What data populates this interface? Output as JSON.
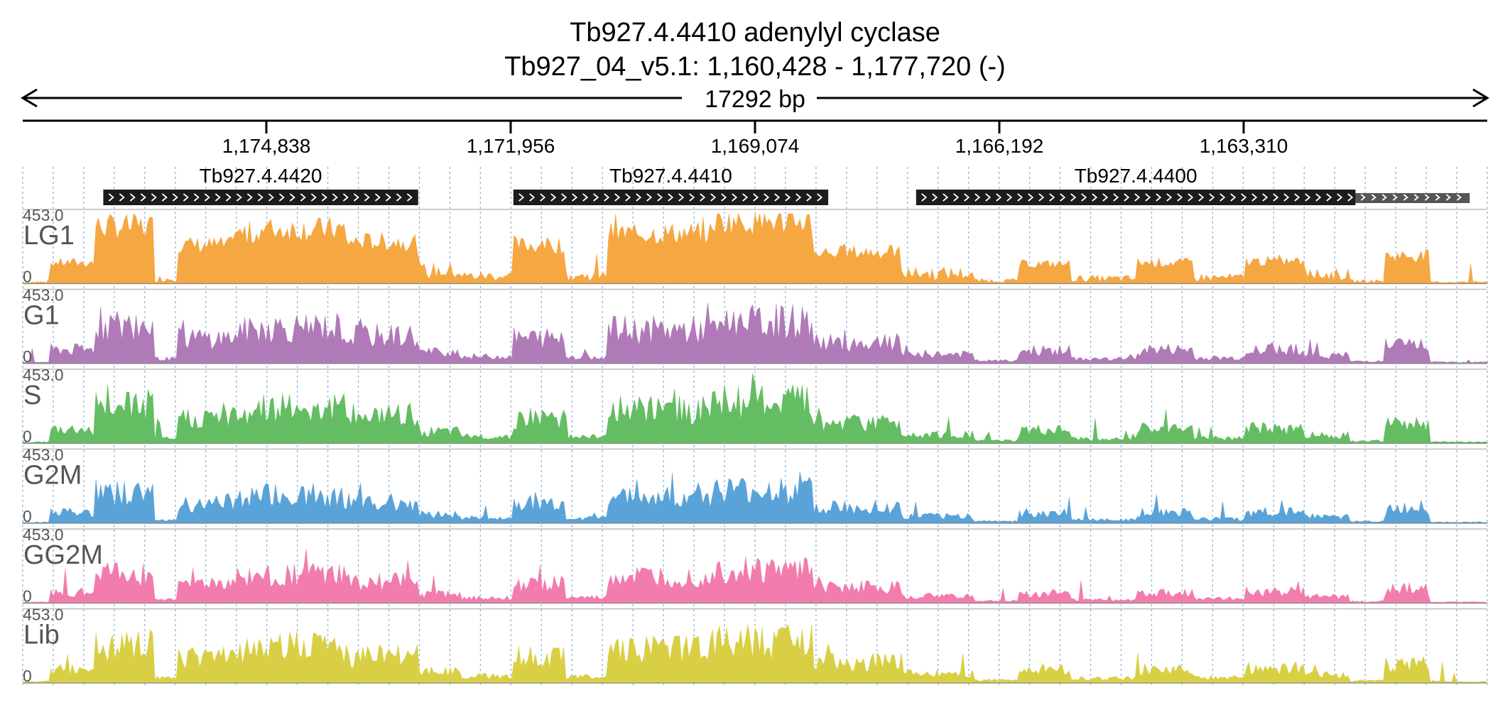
{
  "header": {
    "title": "Tb927.4.4410  adenylyl cyclase",
    "locus": "Tb927_04_v5.1: 1,160,428 - 1,177,720 (-)",
    "span": "17292 bp"
  },
  "ruler": {
    "ticks": [
      "1,174,838",
      "1,171,956",
      "1,169,074",
      "1,166,192",
      "1,163,310"
    ]
  },
  "colors": {
    "LG1": "#f5a742",
    "G1": "#b07ab8",
    "S": "#64bd63",
    "G2M": "#5aa3d9",
    "GG2M": "#f27cae",
    "Lib": "#d9cf45",
    "gene": "#1c1c1c",
    "gene_extension": "#555555",
    "grid": "#8fb3dd",
    "axis": "#000000",
    "label_gray": "#555555"
  },
  "genes": [
    {
      "name": "Tb927.4.4420",
      "start": 0.055,
      "end": 0.27
    },
    {
      "name": "Tb927.4.4410",
      "start": 0.335,
      "end": 0.55
    },
    {
      "name": "Tb927.4.4400",
      "start": 0.61,
      "end": 0.91,
      "ext_end": 0.988
    }
  ],
  "tracks": [
    {
      "id": "LG1",
      "label": "LG1",
      "max": "453.0",
      "min": "0",
      "color_key": "LG1",
      "style": "spiky"
    },
    {
      "id": "G1",
      "label": "G1",
      "max": "453.0",
      "min": "0",
      "color_key": "G1",
      "style": "jagged"
    },
    {
      "id": "S",
      "label": "S",
      "max": "453.0",
      "min": "0",
      "color_key": "S",
      "style": "jagged"
    },
    {
      "id": "G2M",
      "label": "G2M",
      "max": "453.0",
      "min": "0",
      "color_key": "G2M",
      "style": "low"
    },
    {
      "id": "GG2M",
      "label": "GG2M",
      "max": "453.0",
      "min": "0",
      "color_key": "GG2M",
      "style": "low"
    },
    {
      "id": "Lib",
      "label": "Lib",
      "max": "453.0",
      "min": "0",
      "color_key": "Lib",
      "style": "jagged"
    }
  ],
  "coverage_profile": [
    {
      "from": 0.0,
      "to": 0.018,
      "level": 0.03
    },
    {
      "from": 0.018,
      "to": 0.05,
      "level": 0.3
    },
    {
      "from": 0.05,
      "to": 0.09,
      "level": 0.82
    },
    {
      "from": 0.09,
      "to": 0.105,
      "level": 0.1
    },
    {
      "from": 0.105,
      "to": 0.145,
      "level": 0.55
    },
    {
      "from": 0.145,
      "to": 0.16,
      "level": 0.7
    },
    {
      "from": 0.16,
      "to": 0.22,
      "level": 0.78
    },
    {
      "from": 0.22,
      "to": 0.27,
      "level": 0.6
    },
    {
      "from": 0.27,
      "to": 0.3,
      "level": 0.25
    },
    {
      "from": 0.3,
      "to": 0.335,
      "level": 0.15
    },
    {
      "from": 0.335,
      "to": 0.37,
      "level": 0.55
    },
    {
      "from": 0.37,
      "to": 0.4,
      "level": 0.15
    },
    {
      "from": 0.4,
      "to": 0.47,
      "level": 0.72
    },
    {
      "from": 0.47,
      "to": 0.54,
      "level": 0.9
    },
    {
      "from": 0.54,
      "to": 0.6,
      "level": 0.45
    },
    {
      "from": 0.6,
      "to": 0.65,
      "level": 0.2
    },
    {
      "from": 0.65,
      "to": 0.68,
      "level": 0.06
    },
    {
      "from": 0.68,
      "to": 0.715,
      "level": 0.28
    },
    {
      "from": 0.715,
      "to": 0.76,
      "level": 0.1
    },
    {
      "from": 0.76,
      "to": 0.8,
      "level": 0.3
    },
    {
      "from": 0.8,
      "to": 0.835,
      "level": 0.12
    },
    {
      "from": 0.835,
      "to": 0.875,
      "level": 0.32
    },
    {
      "from": 0.875,
      "to": 0.905,
      "level": 0.18
    },
    {
      "from": 0.905,
      "to": 0.93,
      "level": 0.05
    },
    {
      "from": 0.93,
      "to": 0.96,
      "level": 0.4
    },
    {
      "from": 0.96,
      "to": 1.0,
      "level": 0.03
    }
  ]
}
